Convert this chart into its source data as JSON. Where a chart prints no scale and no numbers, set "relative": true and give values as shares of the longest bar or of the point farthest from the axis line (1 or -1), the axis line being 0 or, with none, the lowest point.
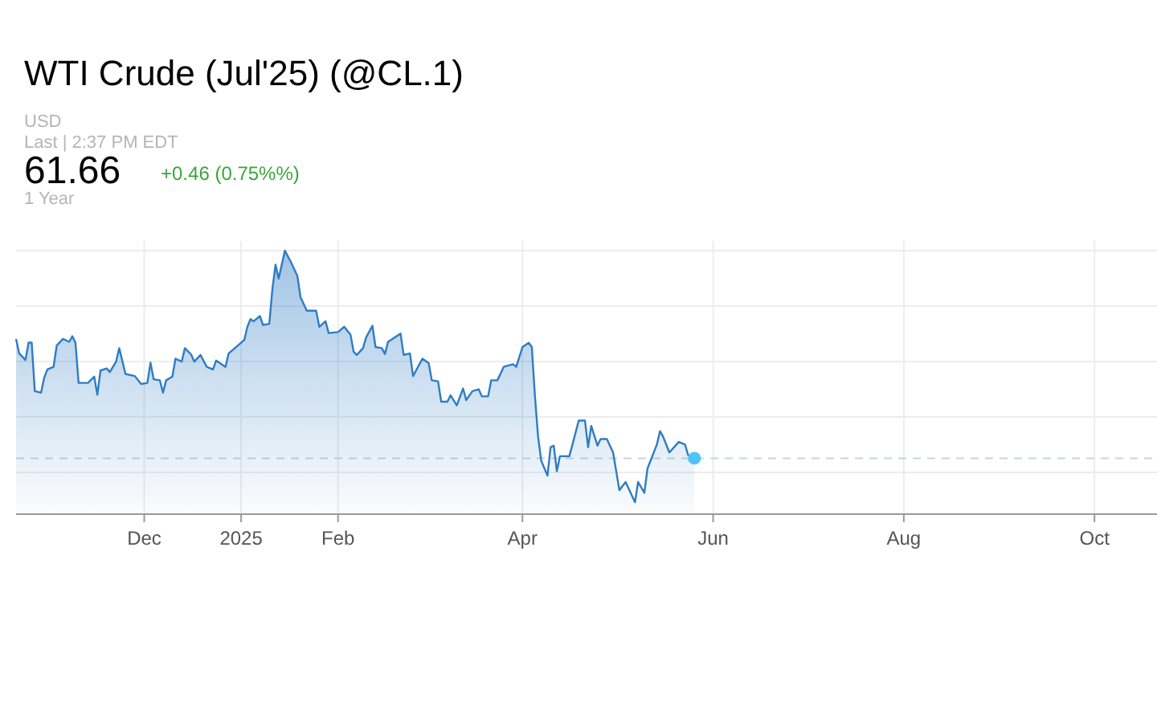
{
  "chart_data": {
    "type": "area",
    "title": "WTI Crude (Jul'25) (@CL.1)",
    "annotations": [
      "USD",
      "Last | 2:37 PM EDT",
      "61.66",
      "+0.46 (0.75%%)",
      "1 Year"
    ],
    "relative": true,
    "grid": true,
    "xlim": [
      "2024-10-21",
      "2025-10-21"
    ],
    "xticks": [
      {
        "value": "2024-12-01",
        "label": "Dec"
      },
      {
        "value": "2025-01-01",
        "label": "2025"
      },
      {
        "value": "2025-02-01",
        "label": "Feb"
      },
      {
        "value": "2025-04-01",
        "label": "Apr"
      },
      {
        "value": "2025-06-01",
        "label": "Jun"
      },
      {
        "value": "2025-08-01",
        "label": "Aug"
      },
      {
        "value": "2025-10-01",
        "label": "Oct"
      }
    ],
    "ref_lines": [
      {
        "axis": "y",
        "value": 0.212,
        "color": "#c8d6e0",
        "line_style": "dashed"
      }
    ],
    "series": [
      {
        "type": "area",
        "color": "#2f7cc4",
        "x": [
          "2024-10-21",
          "2024-10-22",
          "2024-10-24",
          "2024-10-25",
          "2024-10-26",
          "2024-10-27",
          "2024-10-29",
          "2024-10-30",
          "2024-10-31",
          "2024-11-02",
          "2024-11-03",
          "2024-11-05",
          "2024-11-07",
          "2024-11-08",
          "2024-11-09",
          "2024-11-10",
          "2024-11-13",
          "2024-11-15",
          "2024-11-16",
          "2024-11-17",
          "2024-11-19",
          "2024-11-20",
          "2024-11-22",
          "2024-11-23",
          "2024-11-25",
          "2024-11-28",
          "2024-11-30",
          "2024-12-02",
          "2024-12-03",
          "2024-12-04",
          "2024-12-06",
          "2024-12-07",
          "2024-12-08",
          "2024-12-10",
          "2024-12-11",
          "2024-12-13",
          "2024-12-14",
          "2024-12-16",
          "2024-12-17",
          "2024-12-19",
          "2024-12-21",
          "2024-12-23",
          "2024-12-24",
          "2024-12-27",
          "2024-12-28",
          "2024-12-30",
          "2025-01-02",
          "2025-01-03",
          "2025-01-04",
          "2025-01-05",
          "2025-01-07",
          "2025-01-08",
          "2025-01-10",
          "2025-01-11",
          "2025-01-12",
          "2025-01-13",
          "2025-01-15",
          "2025-01-17",
          "2025-01-19",
          "2025-01-20",
          "2025-01-22",
          "2025-01-25",
          "2025-01-26",
          "2025-01-28",
          "2025-01-29",
          "2025-02-01",
          "2025-02-03",
          "2025-02-05",
          "2025-02-06",
          "2025-02-07",
          "2025-02-09",
          "2025-02-10",
          "2025-02-12",
          "2025-02-13",
          "2025-02-15",
          "2025-02-16",
          "2025-02-17",
          "2025-02-21",
          "2025-02-22",
          "2025-02-24",
          "2025-02-25",
          "2025-02-28",
          "2025-03-02",
          "2025-03-03",
          "2025-03-05",
          "2025-03-06",
          "2025-03-08",
          "2025-03-09",
          "2025-03-11",
          "2025-03-13",
          "2025-03-14",
          "2025-03-16",
          "2025-03-18",
          "2025-03-19",
          "2025-03-21",
          "2025-03-22",
          "2025-03-24",
          "2025-03-26",
          "2025-03-29",
          "2025-03-30",
          "2025-04-01",
          "2025-04-03",
          "2025-04-04",
          "2025-04-05",
          "2025-04-06",
          "2025-04-07",
          "2025-04-09",
          "2025-04-10",
          "2025-04-11",
          "2025-04-12",
          "2025-04-13",
          "2025-04-16",
          "2025-04-17",
          "2025-04-19",
          "2025-04-21",
          "2025-04-22",
          "2025-04-23",
          "2025-04-25",
          "2025-04-26",
          "2025-04-28",
          "2025-04-30",
          "2025-05-02",
          "2025-05-04",
          "2025-05-07",
          "2025-05-08",
          "2025-05-10",
          "2025-05-11",
          "2025-05-14",
          "2025-05-15",
          "2025-05-16",
          "2025-05-18",
          "2025-05-21",
          "2025-05-23",
          "2025-05-24",
          "2025-05-26"
        ],
        "values": [
          0.665,
          0.61,
          0.585,
          0.651,
          0.651,
          0.467,
          0.461,
          0.518,
          0.549,
          0.559,
          0.64,
          0.665,
          0.654,
          0.675,
          0.651,
          0.498,
          0.498,
          0.522,
          0.453,
          0.545,
          0.553,
          0.539,
          0.579,
          0.63,
          0.532,
          0.524,
          0.494,
          0.498,
          0.575,
          0.512,
          0.508,
          0.461,
          0.508,
          0.522,
          0.59,
          0.579,
          0.63,
          0.606,
          0.579,
          0.604,
          0.559,
          0.549,
          0.583,
          0.559,
          0.61,
          0.63,
          0.661,
          0.711,
          0.74,
          0.732,
          0.752,
          0.718,
          0.722,
          0.854,
          0.947,
          0.894,
          1.0,
          0.955,
          0.904,
          0.823,
          0.772,
          0.772,
          0.711,
          0.732,
          0.687,
          0.691,
          0.711,
          0.681,
          0.616,
          0.604,
          0.63,
          0.671,
          0.715,
          0.634,
          0.63,
          0.608,
          0.654,
          0.685,
          0.604,
          0.61,
          0.524,
          0.59,
          0.573,
          0.508,
          0.504,
          0.427,
          0.427,
          0.451,
          0.413,
          0.477,
          0.433,
          0.467,
          0.474,
          0.447,
          0.447,
          0.508,
          0.508,
          0.559,
          0.569,
          0.559,
          0.634,
          0.65,
          0.634,
          0.447,
          0.294,
          0.203,
          0.146,
          0.254,
          0.26,
          0.163,
          0.22,
          0.22,
          0.264,
          0.355,
          0.355,
          0.254,
          0.335,
          0.26,
          0.285,
          0.285,
          0.234,
          0.091,
          0.122,
          0.045,
          0.122,
          0.081,
          0.173,
          0.264,
          0.315,
          0.294,
          0.234,
          0.274,
          0.264,
          0.224,
          0.212
        ]
      },
      {
        "type": "scatter",
        "color": "#4fc3f7",
        "marker": "circle",
        "x": [
          "2025-05-26"
        ],
        "values": [
          0.212
        ]
      }
    ]
  }
}
